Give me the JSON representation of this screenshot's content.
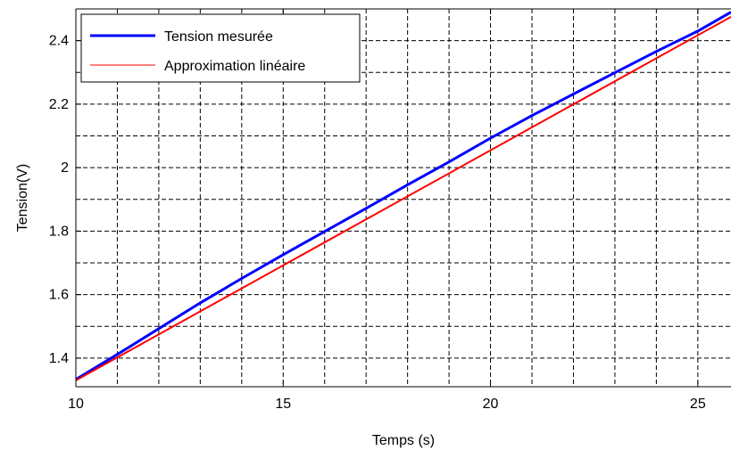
{
  "chart_data": {
    "type": "line",
    "title": "",
    "xlabel": "Temps (s)",
    "ylabel": "Tension(V)",
    "xlim": [
      10,
      25.8
    ],
    "ylim": [
      1.31,
      2.5
    ],
    "grid": true,
    "legend_position": "top-left",
    "x_ticks": [
      10,
      15,
      20,
      25
    ],
    "x_tick_labels": [
      "10",
      "15",
      "20",
      "25"
    ],
    "x_grid": [
      11,
      12,
      13,
      14,
      15,
      16,
      17,
      18,
      19,
      20,
      21,
      22,
      23,
      24,
      25
    ],
    "y_ticks": [
      1.4,
      1.6,
      1.8,
      2.0,
      2.2,
      2.4
    ],
    "y_tick_labels": [
      "1.4",
      "1.6",
      "1.8",
      "2",
      "2.2",
      "2.4"
    ],
    "y_grid": [
      1.4,
      1.5,
      1.6,
      1.7,
      1.8,
      1.9,
      2.0,
      2.1,
      2.2,
      2.3,
      2.4
    ],
    "series": [
      {
        "name": "Tension mesurée",
        "color": "#0000ff",
        "x": [
          10,
          11,
          12,
          13,
          14,
          15,
          16,
          17,
          18,
          19,
          20,
          21,
          22,
          23,
          24,
          25,
          25.8
        ],
        "y": [
          1.333,
          1.412,
          1.493,
          1.574,
          1.651,
          1.726,
          1.799,
          1.872,
          1.946,
          2.018,
          2.093,
          2.164,
          2.232,
          2.299,
          2.366,
          2.43,
          2.49
        ]
      },
      {
        "name": "Approximation linéaire",
        "color": "#ff0000",
        "x": [
          10,
          25.8
        ],
        "y": [
          1.33,
          2.475
        ]
      }
    ]
  }
}
